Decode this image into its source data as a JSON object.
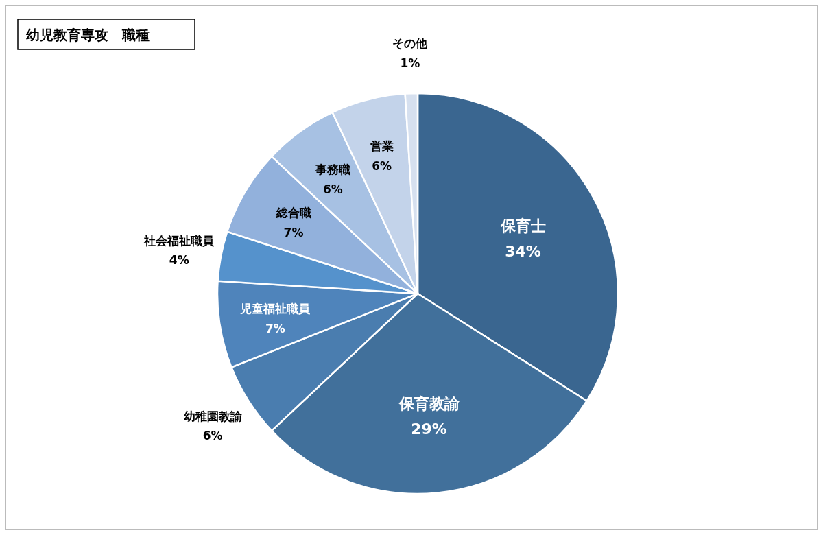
{
  "chart_data": {
    "type": "pie",
    "title": "幼児教育専攻　職種",
    "categories": [
      "保育士",
      "保育教諭",
      "幼稚園教諭",
      "児童福祉職員",
      "社会福祉職員",
      "総合職",
      "事務職",
      "営業",
      "その他"
    ],
    "values": [
      34,
      29,
      6,
      7,
      4,
      7,
      6,
      6,
      1
    ],
    "colors": [
      "#3a6690",
      "#41709b",
      "#4a7daf",
      "#4f84bb",
      "#5592cc",
      "#92b1dc",
      "#a7c1e3",
      "#c3d3ea",
      "#d6e0ef"
    ],
    "value_labels": [
      "34%",
      "29%",
      "6%",
      "7%",
      "4%",
      "7%",
      "6%",
      "6%",
      "1%"
    ]
  }
}
